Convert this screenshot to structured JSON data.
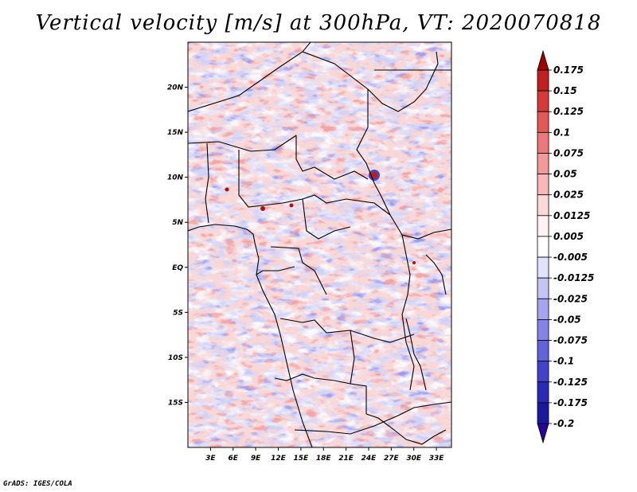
{
  "chart_data": {
    "type": "heatmap",
    "title": "Vertical velocity [m/s] at 300hPa, VT: 2020070818",
    "variable": "Vertical velocity",
    "units": "m/s",
    "level": "300hPa",
    "valid_time": "2020070818",
    "xlabel": "",
    "ylabel": "",
    "xlim": [
      0,
      35
    ],
    "ylim": [
      -20,
      25
    ],
    "x_ticks": [
      3,
      6,
      9,
      12,
      15,
      18,
      21,
      24,
      27,
      30,
      33
    ],
    "x_tick_labels": [
      "3E",
      "6E",
      "9E",
      "12E",
      "15E",
      "18E",
      "21E",
      "24E",
      "27E",
      "30E",
      "33E"
    ],
    "y_ticks": [
      20,
      15,
      10,
      5,
      0,
      -5,
      -10,
      -15
    ],
    "y_tick_labels": [
      "20N",
      "15N",
      "10N",
      "5N",
      "EQ",
      "5S",
      "10S",
      "15S"
    ],
    "colorbar": {
      "levels": [
        "0.175",
        "0.15",
        "0.125",
        "0.1",
        "0.075",
        "0.05",
        "0.025",
        "0.0125",
        "0.005",
        "-0.005",
        "-0.0125",
        "-0.025",
        "-0.05",
        "-0.075",
        "-0.1",
        "-0.125",
        "-0.175",
        "-0.2"
      ],
      "colors": [
        "#a00000",
        "#c02020",
        "#d83838",
        "#e45858",
        "#ee7878",
        "#f49898",
        "#f8b8b8",
        "#fcd8d8",
        "#fff2f2",
        "#ffffff",
        "#e2e2ff",
        "#c4c4f8",
        "#a4a4f0",
        "#8484e8",
        "#6262dc",
        "#4242cc",
        "#2a2ab8",
        "#1a1aa0",
        "#0a0a80"
      ],
      "top_color": "#a00000",
      "bottom_color": "#2a009a"
    }
  },
  "footer": {
    "credit": "GrADS: IGES/COLA"
  }
}
